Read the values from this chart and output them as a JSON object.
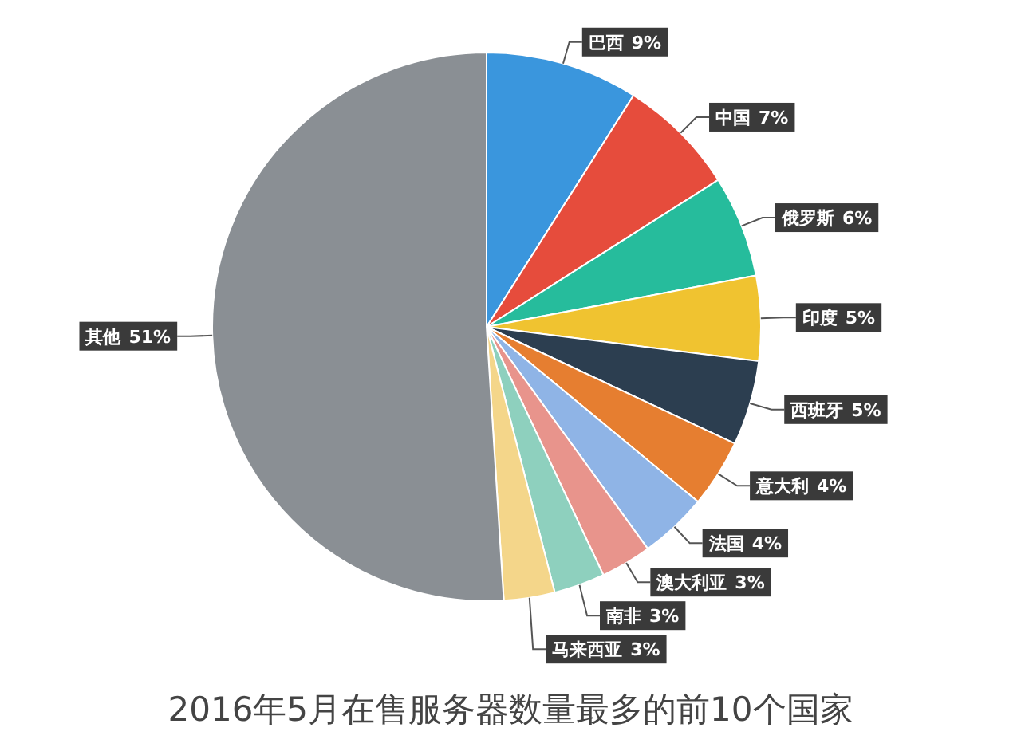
{
  "chart_data": {
    "type": "pie",
    "title": "2016年5月在售服务器数量最多的前10个国家",
    "categories": [
      "巴西",
      "中国",
      "俄罗斯",
      "印度",
      "西班牙",
      "意大利",
      "法国",
      "澳大利亚",
      "南非",
      "马来西亚",
      "其他"
    ],
    "values": [
      9,
      7,
      6,
      5,
      5,
      4,
      4,
      3,
      3,
      3,
      51
    ],
    "colors": [
      "#3a96dd",
      "#e64c3c",
      "#26bc9c",
      "#f0c330",
      "#2c3e50",
      "#e67e30",
      "#8fb4e6",
      "#e8948c",
      "#8ed0be",
      "#f4d68a",
      "#8a8f94"
    ],
    "value_labels": [
      "9%",
      "7%",
      "6%",
      "5%",
      "5%",
      "4%",
      "4%",
      "3%",
      "3%",
      "3%",
      "51%"
    ]
  }
}
